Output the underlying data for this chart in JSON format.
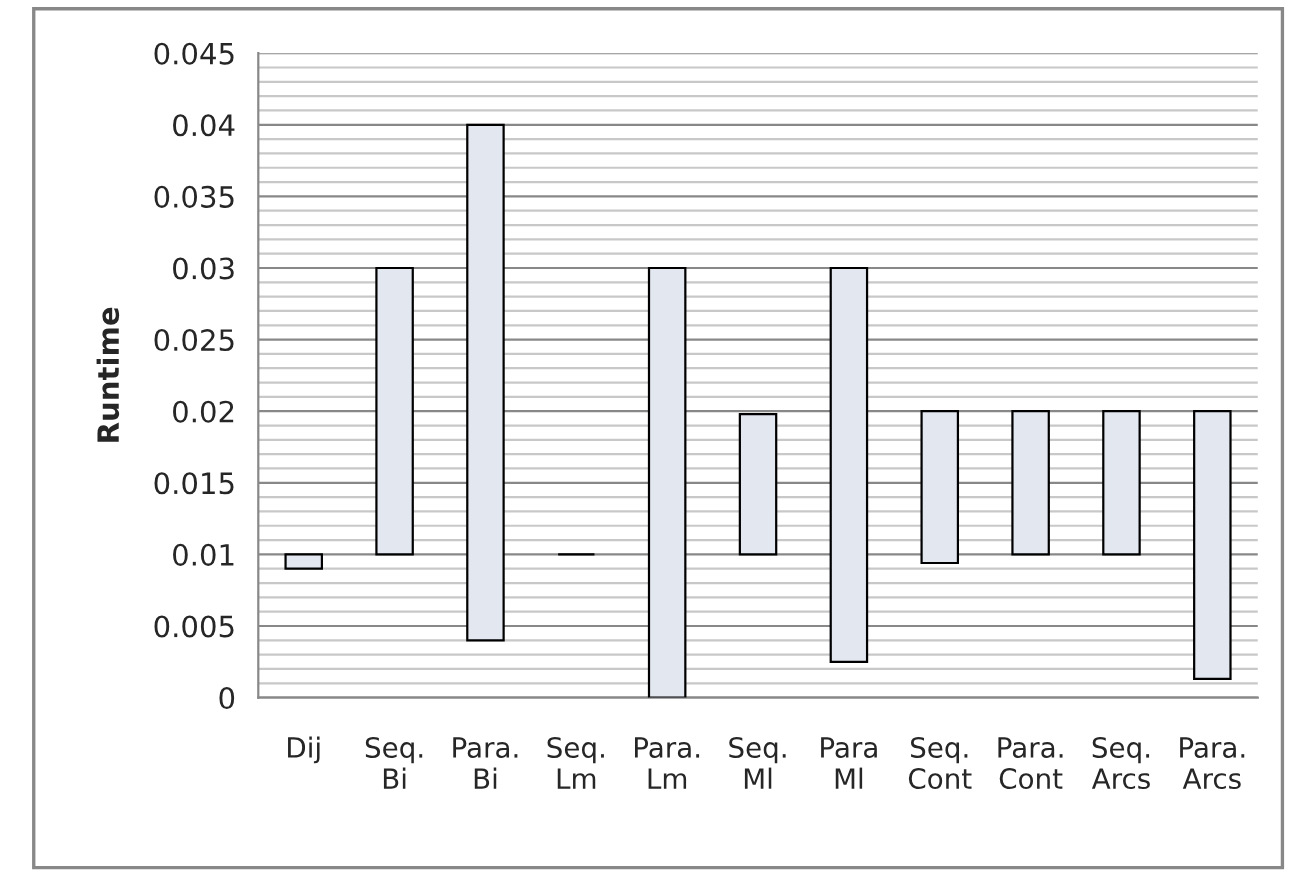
{
  "chart_data": {
    "type": "bar",
    "ylabel": "Runtime",
    "categories": [
      "Dij",
      "Seq.\nBi",
      "Para.\nBi",
      "Seq.\nLm",
      "Para.\nLm",
      "Seq.\nMl",
      "Para\nMl",
      "Seq.\nCont",
      "Para.\nCont",
      "Seq.\nArcs",
      "Para.\nArcs"
    ],
    "base": [
      0.009,
      0.01,
      0.004,
      0.01,
      0,
      0.01,
      0.0025,
      0.0094,
      0.01,
      0.01,
      0.0013
    ],
    "values": [
      0.001,
      0.02,
      0.036,
      0,
      0.03,
      0.0098,
      0.0275,
      0.0106,
      0.01,
      0.01,
      0.0187
    ],
    "colors": [
      "#e3e7f0",
      "#e3e7f0",
      "#e3e7f0",
      "#000000",
      "#e3e7f0",
      "#e3e7f0",
      "#e3e7f0",
      "#e3e7f0",
      "#e3e7f0",
      "#e3e7f0",
      "#e3e7f0"
    ],
    "ylim": [
      0,
      0.045
    ],
    "yticks": [
      "0",
      0.005,
      0.01,
      0.015,
      0.02,
      0.025,
      0.03,
      0.035,
      0.04,
      0.045,
      {
        "value": 0.001,
        "label": null
      },
      {
        "value": 0.002,
        "label": null
      },
      {
        "value": 0.003,
        "label": null
      },
      {
        "value": 0.004,
        "label": null
      },
      {
        "value": 0.006,
        "label": null
      },
      {
        "value": 0.007,
        "label": null
      },
      {
        "value": 0.008,
        "label": null
      },
      {
        "value": 0.009,
        "label": null
      },
      {
        "value": 0.011,
        "label": null
      },
      {
        "value": 0.012,
        "label": null
      },
      {
        "value": 0.013,
        "label": null
      },
      {
        "value": 0.014,
        "label": null
      },
      {
        "value": 0.016,
        "label": null
      },
      {
        "value": 0.017,
        "label": null
      },
      {
        "value": 0.018,
        "label": null
      },
      {
        "value": 0.019,
        "label": null
      },
      {
        "value": 0.021,
        "label": null
      },
      {
        "value": 0.022,
        "label": null
      },
      {
        "value": 0.023,
        "label": null
      },
      {
        "value": 0.024,
        "label": null
      },
      {
        "value": 0.026,
        "label": null
      },
      {
        "value": 0.027,
        "label": null
      },
      {
        "value": 0.028,
        "label": null
      },
      {
        "value": 0.029,
        "label": null
      },
      {
        "value": 0.031,
        "label": null
      },
      {
        "value": 0.032,
        "label": null
      },
      {
        "value": 0.033,
        "label": null
      },
      {
        "value": 0.034,
        "label": null
      },
      {
        "value": 0.036,
        "label": null
      },
      {
        "value": 0.037,
        "label": null
      },
      {
        "value": 0.038,
        "label": null
      },
      {
        "value": 0.039,
        "label": null
      },
      {
        "value": 0.041,
        "label": null
      },
      {
        "value": 0.042,
        "label": null
      },
      {
        "value": 0.043,
        "label": null
      },
      {
        "value": 0.044,
        "label": null
      }
    ],
    "grid": "y"
  }
}
